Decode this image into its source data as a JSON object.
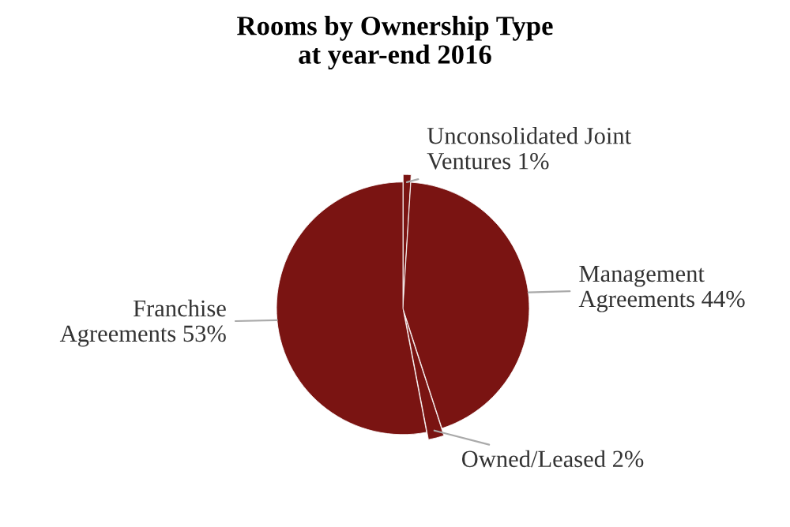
{
  "chart_data": {
    "type": "pie",
    "title": "Rooms by Ownership Type\nat year-end 2016",
    "categories": [
      "Unconsolidated Joint Ventures",
      "Management Agreements",
      "Owned/Leased",
      "Franchise Agreements"
    ],
    "values": [
      1,
      44,
      2,
      53
    ],
    "value_labels": [
      "1%",
      "44%",
      "2%",
      "53%"
    ],
    "colors": [
      "#7a1412",
      "#7a1412",
      "#7a1412",
      "#7a1412"
    ],
    "legend": false
  }
}
